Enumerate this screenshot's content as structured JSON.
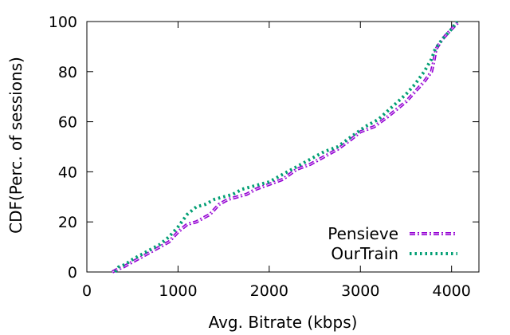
{
  "chart_data": {
    "type": "line",
    "title": "",
    "xlabel": "Avg. Bitrate (kbps)",
    "ylabel": "CDF(Perc. of sessions)",
    "xlim": [
      0,
      4300
    ],
    "ylim": [
      0,
      100
    ],
    "x_ticks": [
      0,
      1000,
      2000,
      3000,
      4000
    ],
    "y_ticks": [
      0,
      20,
      40,
      60,
      80,
      100
    ],
    "grid": false,
    "legend_position": "bottom-right",
    "series": [
      {
        "name": "Pensieve",
        "color": "#9400d3",
        "style": "dash-dot",
        "points": [
          [
            280,
            0
          ],
          [
            330,
            1
          ],
          [
            400,
            2
          ],
          [
            500,
            4
          ],
          [
            600,
            6
          ],
          [
            700,
            8
          ],
          [
            800,
            10
          ],
          [
            900,
            12
          ],
          [
            1000,
            16
          ],
          [
            1100,
            19
          ],
          [
            1200,
            20
          ],
          [
            1300,
            22
          ],
          [
            1350,
            23
          ],
          [
            1450,
            27
          ],
          [
            1550,
            29
          ],
          [
            1650,
            30
          ],
          [
            1750,
            31
          ],
          [
            1850,
            33
          ],
          [
            2000,
            35
          ],
          [
            2150,
            37
          ],
          [
            2300,
            41
          ],
          [
            2450,
            43
          ],
          [
            2600,
            46
          ],
          [
            2750,
            49
          ],
          [
            2900,
            53
          ],
          [
            3000,
            56
          ],
          [
            3150,
            58
          ],
          [
            3300,
            62
          ],
          [
            3400,
            65
          ],
          [
            3500,
            68
          ],
          [
            3600,
            72
          ],
          [
            3700,
            76
          ],
          [
            3780,
            80
          ],
          [
            3810,
            85
          ],
          [
            3830,
            89
          ],
          [
            3900,
            93
          ],
          [
            4000,
            97
          ],
          [
            4080,
            100
          ]
        ]
      },
      {
        "name": "OurTrain",
        "color": "#009e73",
        "style": "dotted",
        "points": [
          [
            310,
            0
          ],
          [
            350,
            2
          ],
          [
            420,
            3
          ],
          [
            500,
            5
          ],
          [
            600,
            7
          ],
          [
            700,
            9
          ],
          [
            800,
            11
          ],
          [
            900,
            14
          ],
          [
            1000,
            18
          ],
          [
            1100,
            23
          ],
          [
            1200,
            26
          ],
          [
            1300,
            27
          ],
          [
            1400,
            29
          ],
          [
            1500,
            30
          ],
          [
            1600,
            31
          ],
          [
            1700,
            33
          ],
          [
            1800,
            34
          ],
          [
            1900,
            35
          ],
          [
            2000,
            36
          ],
          [
            2150,
            39
          ],
          [
            2300,
            42
          ],
          [
            2450,
            45
          ],
          [
            2600,
            48
          ],
          [
            2750,
            50
          ],
          [
            2900,
            54
          ],
          [
            3050,
            58
          ],
          [
            3200,
            61
          ],
          [
            3350,
            66
          ],
          [
            3500,
            71
          ],
          [
            3600,
            75
          ],
          [
            3700,
            80
          ],
          [
            3780,
            85
          ],
          [
            3820,
            89
          ],
          [
            3900,
            93
          ],
          [
            4000,
            97
          ],
          [
            4060,
            100
          ]
        ]
      }
    ]
  }
}
